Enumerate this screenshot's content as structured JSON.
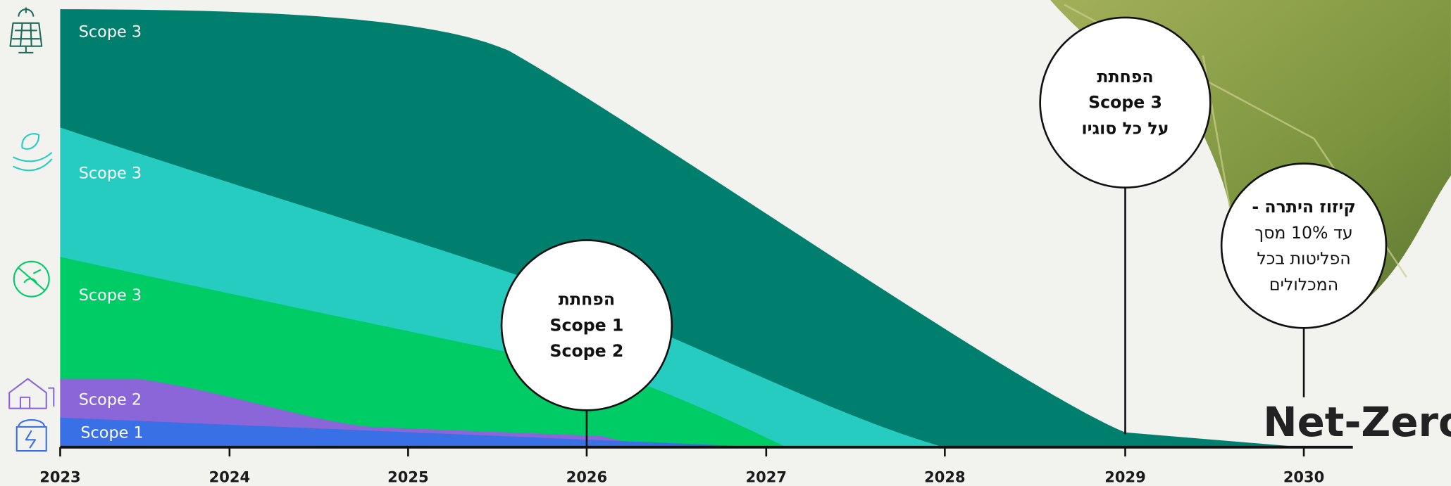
{
  "axis": {
    "years": [
      "2023",
      "2024",
      "2025",
      "2026",
      "2027",
      "2028",
      "2029",
      "2030"
    ]
  },
  "bands": [
    "Scope 3",
    "Scope 3",
    "Scope 3",
    "Scope 2",
    "Scope 1"
  ],
  "callouts": [
    {
      "lines": [
        "הפחתת",
        "Scope 1",
        "Scope 2"
      ]
    },
    {
      "lines": [
        "הפחתת",
        "Scope 3",
        "על כל סוגיו"
      ]
    },
    {
      "lines": [
        "קיזוז היתרה -",
        "עד 10% מסך",
        "הפליטות בכל",
        "המכלולים"
      ]
    }
  ],
  "goal": "Net-Zero"
}
